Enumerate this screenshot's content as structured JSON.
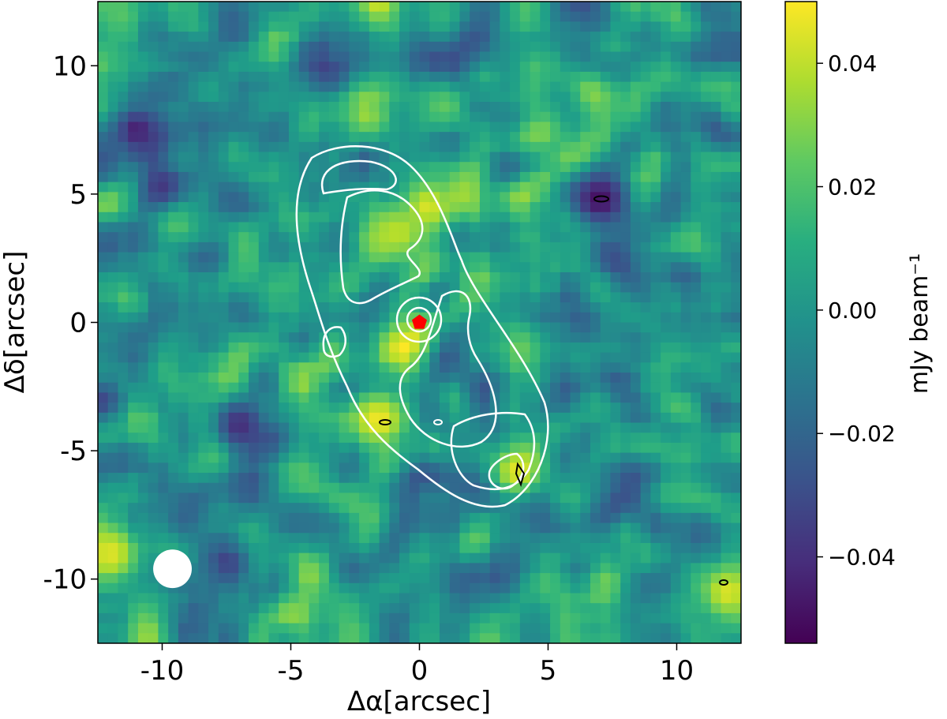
{
  "chart_data": {
    "type": "heatmap",
    "xlabel": "Δα[arcsec]",
    "ylabel": "Δδ[arcsec]",
    "xlim": [
      -12.5,
      12.5
    ],
    "ylim": [
      -12.5,
      12.5
    ],
    "x_ticks": [
      -10,
      -5,
      0,
      5,
      10
    ],
    "x_tick_labels": [
      "-10",
      "-5",
      "0",
      "5",
      "10"
    ],
    "y_ticks": [
      10,
      5,
      0,
      -5,
      -10
    ],
    "y_tick_labels": [
      "10",
      "5",
      "0",
      "-5",
      "-10"
    ],
    "colormap": "viridis",
    "colorbar": {
      "label": "mJy beam⁻¹",
      "range": [
        -0.054,
        0.05
      ],
      "ticks": [
        0.04,
        0.02,
        0.0,
        -0.02,
        -0.04
      ],
      "tick_labels": [
        "0.04",
        "0.02",
        "0.00",
        "−0.02",
        "−0.04"
      ]
    },
    "contour_color": "#ffffff",
    "negative_contour_color": "#000000",
    "star_marker": {
      "x": 0.0,
      "y": 0.0,
      "shape": "pentagon",
      "color": "#ff0000"
    },
    "beam": {
      "x": -9.6,
      "y": -9.6,
      "diameter_arcsec": 1.5,
      "color": "#ffffff"
    },
    "bright_spots": [
      {
        "x": 0.3,
        "y": 4.5,
        "value": 0.045
      },
      {
        "x": -0.8,
        "y": 3.5,
        "value": 0.04
      },
      {
        "x": -1.6,
        "y": -3.8,
        "value": 0.048
      },
      {
        "x": 3.8,
        "y": -5.8,
        "value": 0.046
      },
      {
        "x": -12.0,
        "y": -9.0,
        "value": 0.045
      },
      {
        "x": 12.0,
        "y": -10.5,
        "value": 0.045
      }
    ],
    "dark_spots": [
      {
        "x": -11.0,
        "y": 7.5,
        "value": -0.045
      },
      {
        "x": 7.0,
        "y": 4.8,
        "value": -0.05
      },
      {
        "x": -7.0,
        "y": -4.0,
        "value": -0.04
      }
    ]
  }
}
